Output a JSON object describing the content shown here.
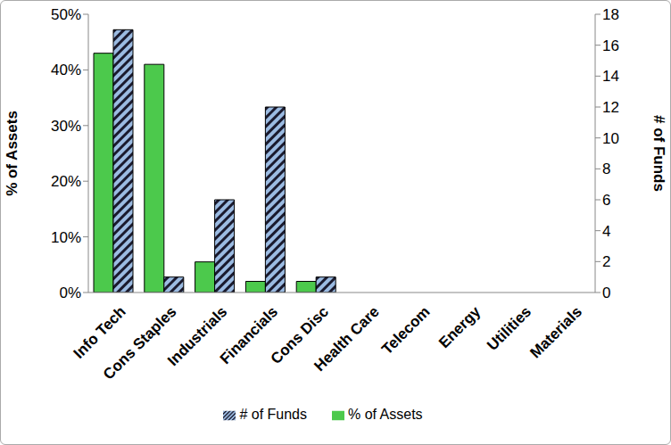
{
  "chart_data": {
    "type": "bar",
    "categories": [
      "Info Tech",
      "Cons Staples",
      "Industrials",
      "Financials",
      "Cons Disc",
      "Health Care",
      "Telecom",
      "Energy",
      "Utilities",
      "Materials"
    ],
    "series": [
      {
        "name": "% of Assets",
        "color": "#4cc94c",
        "values": [
          43,
          41,
          5.5,
          2,
          2,
          0,
          0,
          0,
          0,
          0
        ]
      },
      {
        "name": "# of Funds",
        "color": "#9bbbe2",
        "axis": "y2",
        "values": [
          17,
          1,
          6,
          12,
          1,
          0,
          0,
          0,
          0,
          0
        ]
      }
    ],
    "y_label": "% of Assets",
    "y2_label": "# of Funds",
    "ylim": [
      0,
      50
    ],
    "yticks": [
      {
        "value": 0,
        "label": "0%"
      },
      {
        "value": 10,
        "label": "10%"
      },
      {
        "value": 20,
        "label": "20%"
      },
      {
        "value": 30,
        "label": "30%"
      },
      {
        "value": 40,
        "label": "40%"
      },
      {
        "value": 50,
        "label": "50%"
      }
    ],
    "y2lim": [
      0,
      18
    ],
    "y2ticks": [
      0,
      2,
      4,
      6,
      8,
      10,
      12,
      14,
      16,
      18
    ],
    "grid": false,
    "legend": "bottom"
  }
}
